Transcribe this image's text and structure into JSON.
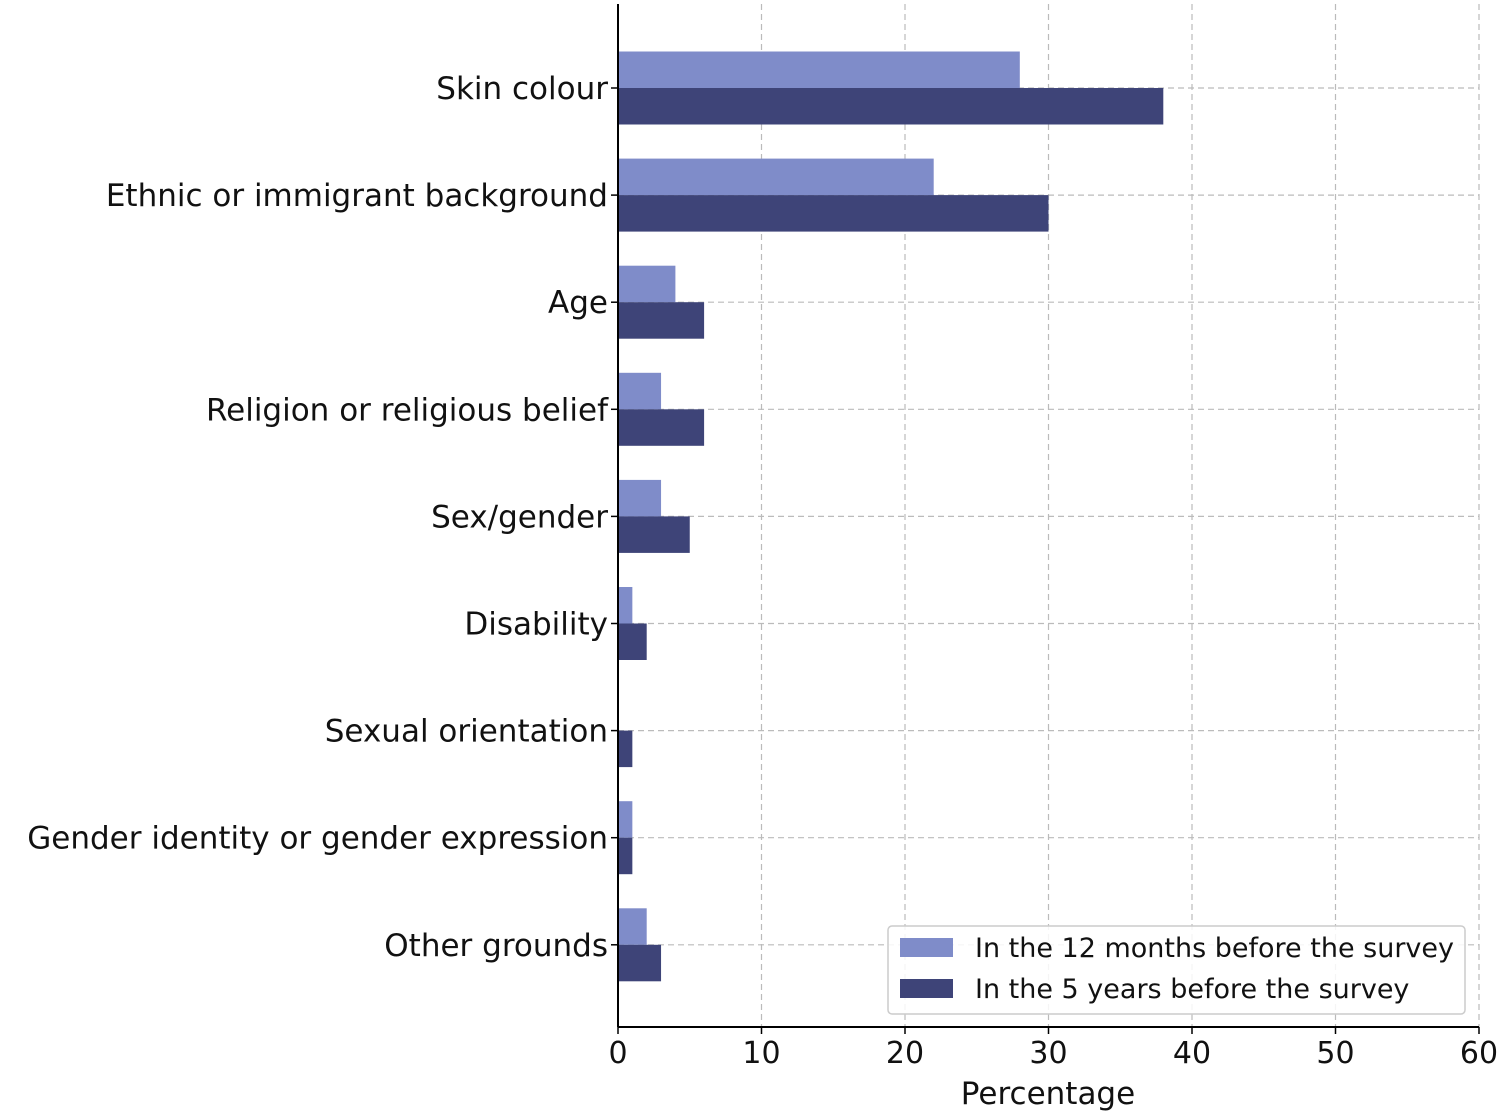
{
  "chart_data": {
    "type": "bar",
    "orientation": "horizontal",
    "categories": [
      "Skin colour",
      "Ethnic or immigrant background",
      "Age",
      "Religion or religious belief",
      "Sex/gender",
      "Disability",
      "Sexual orientation",
      "Gender identity or gender expression",
      "Other grounds"
    ],
    "series": [
      {
        "name": "In the 12 months before the survey",
        "color": "#7f8cc9",
        "values": [
          28,
          22,
          4,
          3,
          3,
          1,
          0,
          1,
          2
        ]
      },
      {
        "name": "In the 5 years before the survey",
        "color": "#3e4478",
        "values": [
          38,
          30,
          6,
          6,
          5,
          2,
          1,
          1,
          3
        ]
      }
    ],
    "title": "",
    "xlabel": "Percentage",
    "ylabel": "",
    "xlim": [
      0,
      60
    ],
    "xticks": [
      "0",
      "10",
      "20",
      "30",
      "40",
      "50",
      "60"
    ],
    "grid": true,
    "legend_position": "bottom-right"
  }
}
